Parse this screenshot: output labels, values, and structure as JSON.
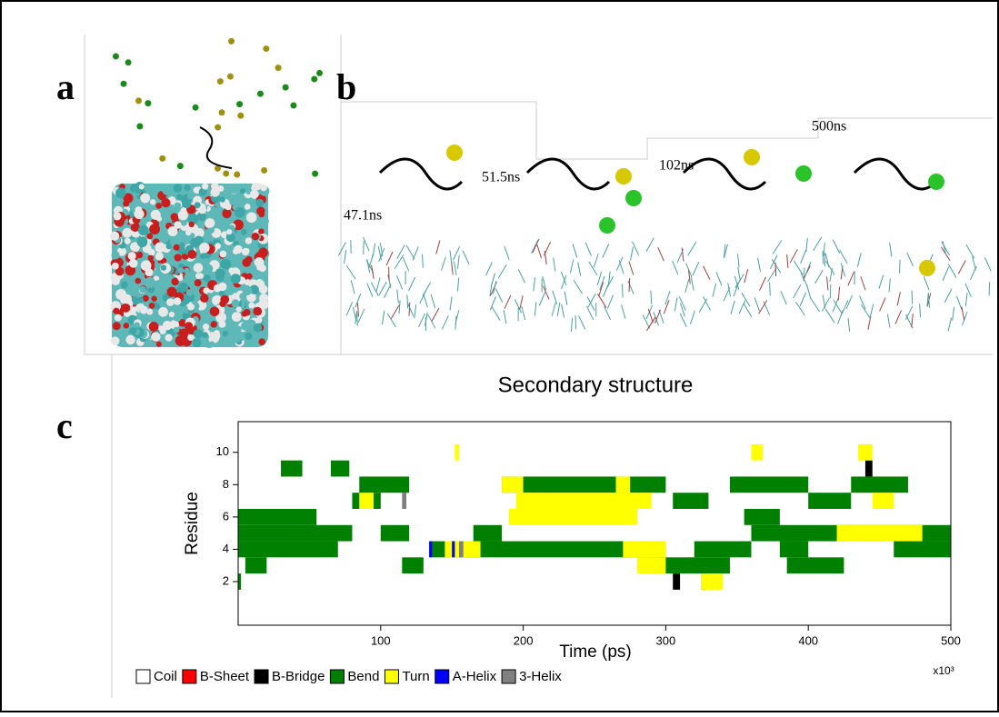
{
  "panels": {
    "a": "a",
    "b": "b",
    "c": "c"
  },
  "snapshots": [
    "47.1ns",
    "51.5ns",
    "102ns",
    "500ns"
  ],
  "chart_data": {
    "type": "timeline",
    "title": "Secondary structure",
    "x_label": "Time (ps)",
    "x_multiplier": "x10³",
    "y_label": "Residue",
    "xlim": [
      0,
      500
    ],
    "xticks": [
      100,
      200,
      300,
      400,
      500
    ],
    "ylim": [
      -0.7,
      11.9
    ],
    "yticks": [
      2,
      4,
      6,
      8,
      10
    ],
    "series": [
      {
        "name": "Coil",
        "color": "#ffffff",
        "segments": []
      },
      {
        "name": "B-Sheet",
        "color": "#ff0000",
        "segments": []
      },
      {
        "name": "B-Bridge",
        "color": "#000000",
        "segments": [
          [
            2,
            305,
            310
          ],
          [
            2,
            325,
            328
          ],
          [
            9,
            440,
            445
          ]
        ]
      },
      {
        "name": "Bend",
        "color": "#008000",
        "segments": [
          [
            9,
            30,
            45
          ],
          [
            9,
            65,
            78
          ],
          [
            8,
            85,
            120
          ],
          [
            8,
            185,
            300
          ],
          [
            8,
            345,
            400
          ],
          [
            8,
            430,
            470
          ],
          [
            7,
            80,
            100
          ],
          [
            7,
            305,
            330
          ],
          [
            7,
            400,
            430
          ],
          [
            6,
            0,
            55
          ],
          [
            6,
            355,
            380
          ],
          [
            5,
            0,
            80
          ],
          [
            5,
            100,
            120
          ],
          [
            5,
            165,
            185
          ],
          [
            5,
            360,
            500
          ],
          [
            4,
            0,
            70
          ],
          [
            4,
            135,
            300
          ],
          [
            4,
            320,
            360
          ],
          [
            4,
            380,
            400
          ],
          [
            4,
            460,
            500
          ],
          [
            3,
            5,
            20
          ],
          [
            3,
            115,
            130
          ],
          [
            3,
            295,
            345
          ],
          [
            3,
            385,
            425
          ],
          [
            2,
            0,
            2
          ]
        ]
      },
      {
        "name": "Turn",
        "color": "#ffff00",
        "segments": [
          [
            10,
            152,
            155
          ],
          [
            10,
            360,
            368
          ],
          [
            10,
            435,
            445
          ],
          [
            8,
            185,
            200
          ],
          [
            8,
            265,
            275
          ],
          [
            7,
            85,
            95
          ],
          [
            7,
            195,
            290
          ],
          [
            7,
            445,
            460
          ],
          [
            6,
            190,
            280
          ],
          [
            5,
            420,
            480
          ],
          [
            4,
            145,
            170
          ],
          [
            4,
            270,
            300
          ],
          [
            3,
            280,
            300
          ],
          [
            2,
            325,
            340
          ]
        ]
      },
      {
        "name": "A-Helix",
        "color": "#0000ff",
        "segments": [
          [
            4,
            134,
            136
          ],
          [
            4,
            150,
            152
          ]
        ]
      },
      {
        "name": "3-Helix",
        "color": "#808080",
        "segments": [
          [
            4,
            155,
            158
          ],
          [
            7,
            115,
            118
          ]
        ]
      }
    ]
  }
}
